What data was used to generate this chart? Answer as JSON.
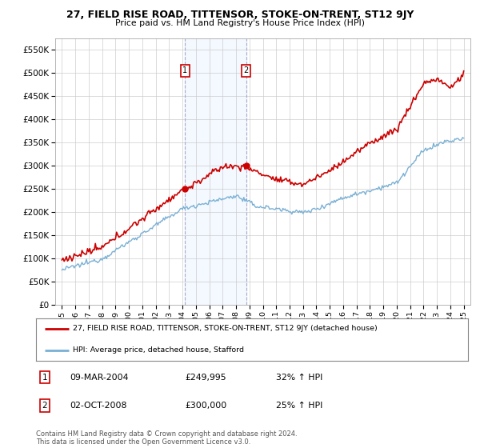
{
  "title1": "27, FIELD RISE ROAD, TITTENSOR, STOKE-ON-TRENT, ST12 9JY",
  "title2": "Price paid vs. HM Land Registry's House Price Index (HPI)",
  "ylabel_ticks": [
    "£0",
    "£50K",
    "£100K",
    "£150K",
    "£200K",
    "£250K",
    "£300K",
    "£350K",
    "£400K",
    "£450K",
    "£500K",
    "£550K"
  ],
  "ytick_vals": [
    0,
    50000,
    100000,
    150000,
    200000,
    250000,
    300000,
    350000,
    400000,
    450000,
    500000,
    550000
  ],
  "ylim": [
    0,
    575000
  ],
  "xlim_start": 1994.5,
  "xlim_end": 2025.5,
  "hpi_color": "#7ab0d4",
  "price_color": "#cc0000",
  "sale1_x": 2004.19,
  "sale1_y": 249995,
  "sale2_x": 2008.75,
  "sale2_y": 300000,
  "sale1_label": "09-MAR-2004",
  "sale1_price": "£249,995",
  "sale1_hpi": "32% ↑ HPI",
  "sale2_label": "02-OCT-2008",
  "sale2_price": "£300,000",
  "sale2_hpi": "25% ↑ HPI",
  "legend_line1": "27, FIELD RISE ROAD, TITTENSOR, STOKE-ON-TRENT, ST12 9JY (detached house)",
  "legend_line2": "HPI: Average price, detached house, Stafford",
  "footer": "Contains HM Land Registry data © Crown copyright and database right 2024.\nThis data is licensed under the Open Government Licence v3.0.",
  "background_color": "#ffffff",
  "grid_color": "#cccccc",
  "shade_color": "#ddeeff",
  "shade_alpha": 0.35
}
